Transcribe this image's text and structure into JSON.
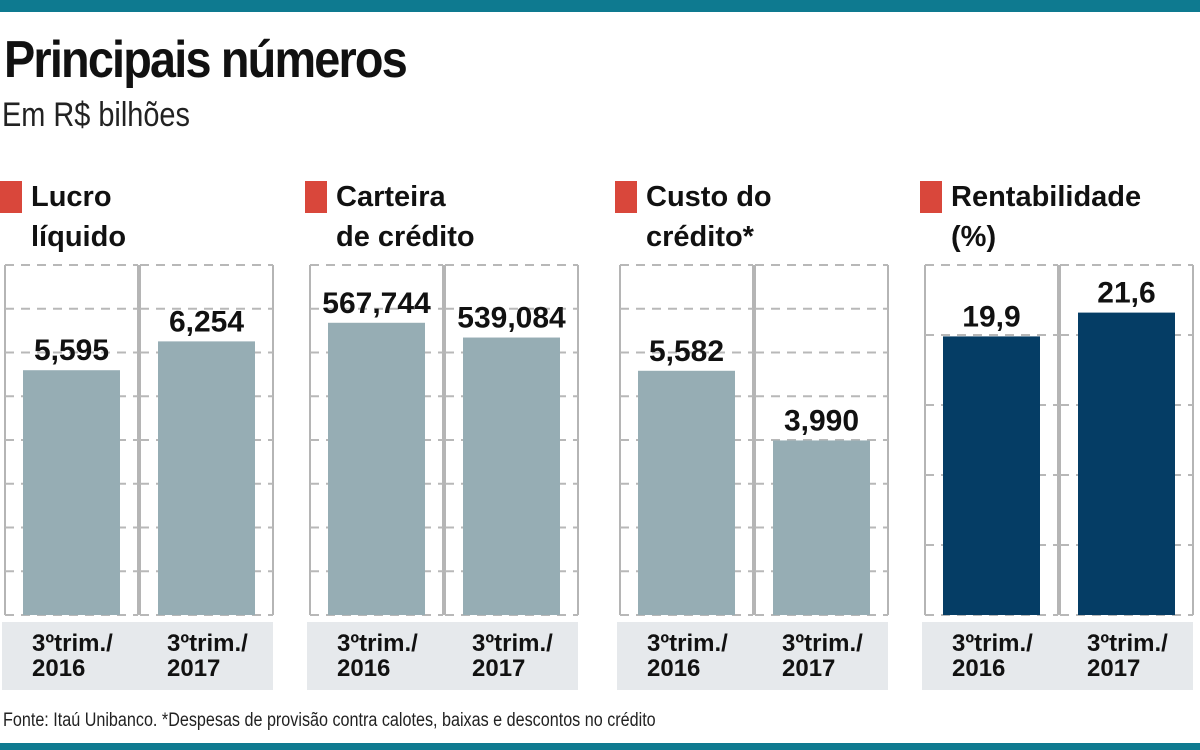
{
  "header": {
    "title": "Principais números",
    "subtitle": "Em R$ bilhões"
  },
  "footer": {
    "source": "Fonte: Itaú Unibanco. *Despesas de provisão contra calotes, baixas e descontos no crédito"
  },
  "colors": {
    "accent_bar": "#0e7a90",
    "marker": "#d9473b",
    "bar_gray": "#96adb4",
    "bar_navy": "#053d65",
    "label_band": "#e6e9ec"
  },
  "chart_data": [
    {
      "type": "bar",
      "title_lines": [
        "Lucro",
        "líquido"
      ],
      "categories": [
        [
          "3ºtrim./",
          "2016"
        ],
        [
          "3ºtrim./",
          "2017"
        ]
      ],
      "values": [
        5.595,
        6.254
      ],
      "value_labels": [
        "5,595",
        "6,254"
      ],
      "ylim": [
        0,
        8
      ],
      "grid": true,
      "color": "#96adb4"
    },
    {
      "type": "bar",
      "title_lines": [
        "Carteira",
        "de crédito"
      ],
      "categories": [
        [
          "3ºtrim./",
          "2016"
        ],
        [
          "3ºtrim./",
          "2017"
        ]
      ],
      "values": [
        567.744,
        539.084
      ],
      "value_labels": [
        "567,744",
        "539,084"
      ],
      "ylim": [
        0,
        680
      ],
      "grid": true,
      "color": "#96adb4"
    },
    {
      "type": "bar",
      "title_lines": [
        "Custo do",
        "crédito*"
      ],
      "categories": [
        [
          "3ºtrim./",
          "2016"
        ],
        [
          "3ºtrim./",
          "2017"
        ]
      ],
      "values": [
        5.582,
        3.99
      ],
      "value_labels": [
        "5,582",
        "3,990"
      ],
      "ylim": [
        0,
        8
      ],
      "grid": true,
      "color": "#96adb4"
    },
    {
      "type": "bar",
      "title_lines": [
        "Rentabilidade",
        "(%)"
      ],
      "categories": [
        [
          "3ºtrim./",
          "2016"
        ],
        [
          "3ºtrim./",
          "2017"
        ]
      ],
      "values": [
        19.9,
        21.6
      ],
      "value_labels": [
        "19,9",
        "21,6"
      ],
      "ylim": [
        0,
        25
      ],
      "grid": true,
      "color": "#053d65"
    }
  ]
}
